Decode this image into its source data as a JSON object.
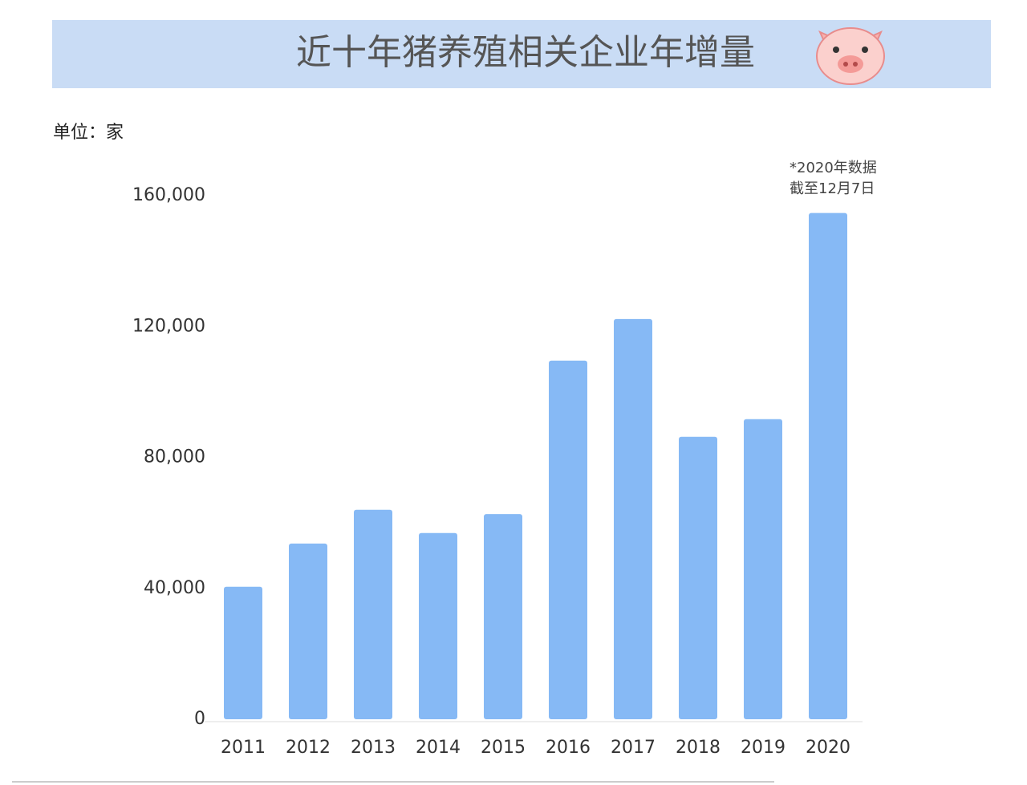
{
  "chart_data": {
    "type": "bar",
    "title": "近十年猪养殖相关企业年增量",
    "unit_label": "单位：家",
    "annotation": [
      "*2020年数据",
      "截至12月7日"
    ],
    "categories": [
      "2011",
      "2012",
      "2013",
      "2014",
      "2015",
      "2016",
      "2017",
      "2018",
      "2019",
      "2020"
    ],
    "values": [
      40500,
      53700,
      64000,
      56900,
      62700,
      109600,
      122300,
      86300,
      91700,
      154700
    ],
    "color": "#86b9f5",
    "ylim": [
      0,
      160000
    ],
    "yticks": [
      0,
      {
        "value": 40000,
        "label": "40,000"
      },
      {
        "value": 80000,
        "label": "80,000"
      },
      {
        "value": 120000,
        "label": "120,000"
      },
      {
        "value": 160000,
        "label": "160,000"
      }
    ],
    "grid": false
  }
}
